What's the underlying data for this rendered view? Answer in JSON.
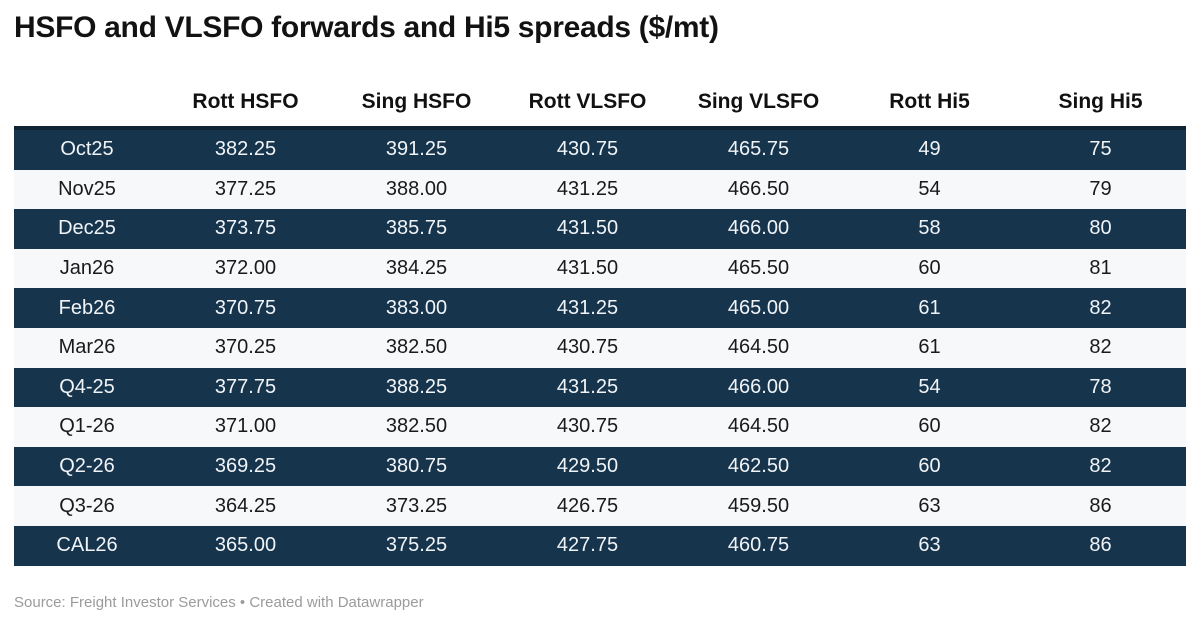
{
  "title": "HSFO and VLSFO forwards and Hi5 spreads ($/mt)",
  "footer": {
    "source": "Source: Freight Investor Services • Created with Datawrapper"
  },
  "colors": {
    "dark_row_bg": "#17344d",
    "dark_row_text": "#f0f4f7",
    "light_row_bg": "#f7f8f9",
    "light_row_text": "#1a1a1a",
    "header_border": "#0f2435",
    "footer_text": "#9b9b9b"
  },
  "chart_data": {
    "type": "table",
    "columns": [
      "",
      "Rott HSFO",
      "Sing HSFO",
      "Rott VLSFO",
      "Sing VLSFO",
      "Rott Hi5",
      "Sing Hi5"
    ],
    "rows": [
      {
        "label": "Oct25",
        "values": [
          "382.25",
          "391.25",
          "430.75",
          "465.75",
          "49",
          "75"
        ]
      },
      {
        "label": "Nov25",
        "values": [
          "377.25",
          "388.00",
          "431.25",
          "466.50",
          "54",
          "79"
        ]
      },
      {
        "label": "Dec25",
        "values": [
          "373.75",
          "385.75",
          "431.50",
          "466.00",
          "58",
          "80"
        ]
      },
      {
        "label": "Jan26",
        "values": [
          "372.00",
          "384.25",
          "431.50",
          "465.50",
          "60",
          "81"
        ]
      },
      {
        "label": "Feb26",
        "values": [
          "370.75",
          "383.00",
          "431.25",
          "465.00",
          "61",
          "82"
        ]
      },
      {
        "label": "Mar26",
        "values": [
          "370.25",
          "382.50",
          "430.75",
          "464.50",
          "61",
          "82"
        ]
      },
      {
        "label": "Q4-25",
        "values": [
          "377.75",
          "388.25",
          "431.25",
          "466.00",
          "54",
          "78"
        ]
      },
      {
        "label": "Q1-26",
        "values": [
          "371.00",
          "382.50",
          "430.75",
          "464.50",
          "60",
          "82"
        ]
      },
      {
        "label": "Q2-26",
        "values": [
          "369.25",
          "380.75",
          "429.50",
          "462.50",
          "60",
          "82"
        ]
      },
      {
        "label": "Q3-26",
        "values": [
          "364.25",
          "373.25",
          "426.75",
          "459.50",
          "63",
          "86"
        ]
      },
      {
        "label": "CAL26",
        "values": [
          "365.00",
          "375.25",
          "427.75",
          "460.75",
          "63",
          "86"
        ]
      }
    ]
  }
}
